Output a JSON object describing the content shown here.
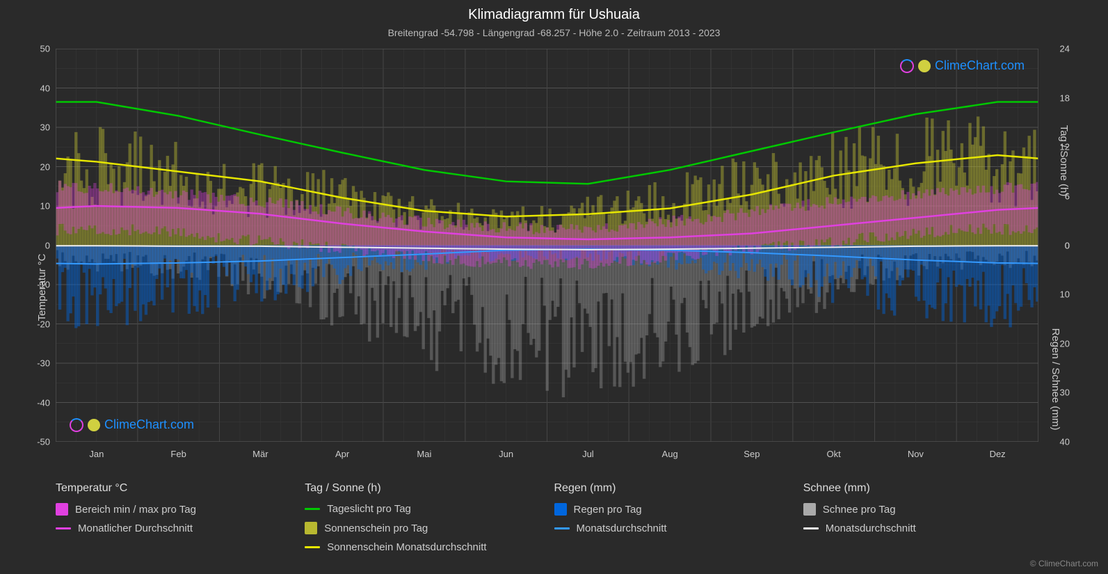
{
  "title": "Klimadiagramm für Ushuaia",
  "subtitle": "Breitengrad -54.798 - Längengrad -68.257 - Höhe 2.0 - Zeitraum 2013 - 2023",
  "copyright": "© ClimeChart.com",
  "watermark_text": "ClimeChart.com",
  "background_color": "#2a2a2a",
  "plot_background": "#2a2a2a",
  "grid_color": "#505050",
  "grid_color_minor": "#3a3a3a",
  "axis_left": {
    "label": "Temperatur °C",
    "min": -50,
    "max": 50,
    "ticks": [
      -50,
      -40,
      -30,
      -20,
      -10,
      0,
      10,
      20,
      30,
      40,
      50
    ],
    "color": "#cccccc"
  },
  "axis_right_upper": {
    "label": "Tag / Sonne (h)",
    "min": 0,
    "max": 24,
    "ticks": [
      0,
      6,
      12,
      18,
      24
    ],
    "color": "#cccccc"
  },
  "axis_right_lower": {
    "label": "Regen / Schnee (mm)",
    "min": 0,
    "max": 40,
    "ticks": [
      0,
      10,
      20,
      30,
      40
    ],
    "color": "#cccccc"
  },
  "months": [
    "Jan",
    "Feb",
    "Mär",
    "Apr",
    "Mai",
    "Jun",
    "Jul",
    "Aug",
    "Sep",
    "Okt",
    "Nov",
    "Dez"
  ],
  "series": {
    "daylight": {
      "label": "Tageslicht pro Tag",
      "color": "#00c800",
      "unit": "h",
      "values_h": [
        17.5,
        15.8,
        13.5,
        11.3,
        9.2,
        7.8,
        7.5,
        9.2,
        11.5,
        13.8,
        16.0,
        17.5
      ]
    },
    "sunshine_avg": {
      "label": "Sonnenschein Monatsdurchschnitt",
      "color": "#e6e600",
      "unit": "h",
      "values_h": [
        10.2,
        9.0,
        7.8,
        5.8,
        4.2,
        3.5,
        3.8,
        4.5,
        6.2,
        8.5,
        10.0,
        11.0
      ]
    },
    "temp_avg": {
      "label": "Monatlicher Durchschnitt",
      "color": "#e040e0",
      "unit": "°C",
      "values_c": [
        10,
        9.5,
        8,
        5.5,
        3.5,
        2,
        1.5,
        2,
        3,
        5,
        7,
        9
      ]
    },
    "rain_avg": {
      "label": "Monatsdurchschnitt",
      "color": "#3399ff",
      "unit": "mm",
      "values_mm": [
        3.8,
        3.6,
        3.2,
        2.5,
        1.8,
        1.0,
        0.8,
        1.0,
        1.5,
        2.2,
        3.0,
        3.6
      ]
    },
    "snow_avg": {
      "label": "Monatsdurchschnitt",
      "color": "#eeeeee",
      "unit": "mm",
      "values_mm": [
        0.1,
        0.2,
        0.2,
        0.4,
        0.6,
        0.8,
        0.9,
        0.8,
        0.6,
        0.4,
        0.2,
        0.1
      ]
    },
    "temp_range": {
      "label": "Bereich min / max pro Tag",
      "color": "#e040e0",
      "opacity": 0.35,
      "min_c": [
        4,
        4,
        2,
        0,
        -2,
        -4,
        -5,
        -4,
        -2,
        0,
        2,
        4
      ],
      "max_c": [
        15,
        14,
        12,
        10,
        7,
        5,
        4,
        5,
        7,
        10,
        12,
        14
      ]
    },
    "sunshine_bars": {
      "label": "Sonnenschein pro Tag",
      "color": "#b8b830",
      "opacity": 0.45,
      "max_h": [
        15,
        14,
        12,
        10,
        7,
        5,
        5,
        7,
        10,
        13,
        15,
        16
      ]
    },
    "rain_bars": {
      "label": "Regen pro Tag",
      "color": "#0066dd",
      "opacity": 0.45,
      "max_mm": [
        18,
        16,
        14,
        10,
        6,
        4,
        3,
        4,
        6,
        10,
        14,
        16
      ]
    },
    "snow_bars": {
      "label": "Schnee pro Tag",
      "color": "#aaaaaa",
      "opacity": 0.35,
      "max_mm": [
        5,
        6,
        8,
        14,
        22,
        28,
        32,
        30,
        24,
        16,
        8,
        5
      ]
    }
  },
  "legend": {
    "groups": [
      {
        "title": "Temperatur °C",
        "items": [
          {
            "type": "box",
            "color": "#e040e0",
            "label": "Bereich min / max pro Tag"
          },
          {
            "type": "line",
            "color": "#e040e0",
            "label": "Monatlicher Durchschnitt"
          }
        ]
      },
      {
        "title": "Tag / Sonne (h)",
        "items": [
          {
            "type": "line",
            "color": "#00c800",
            "label": "Tageslicht pro Tag"
          },
          {
            "type": "box",
            "color": "#b8b830",
            "label": "Sonnenschein pro Tag"
          },
          {
            "type": "line",
            "color": "#e6e600",
            "label": "Sonnenschein Monatsdurchschnitt"
          }
        ]
      },
      {
        "title": "Regen (mm)",
        "items": [
          {
            "type": "box",
            "color": "#0066dd",
            "label": "Regen pro Tag"
          },
          {
            "type": "line",
            "color": "#3399ff",
            "label": "Monatsdurchschnitt"
          }
        ]
      },
      {
        "title": "Schnee (mm)",
        "items": [
          {
            "type": "box",
            "color": "#aaaaaa",
            "label": "Schnee pro Tag"
          },
          {
            "type": "line",
            "color": "#eeeeee",
            "label": "Monatsdurchschnitt"
          }
        ]
      }
    ]
  }
}
